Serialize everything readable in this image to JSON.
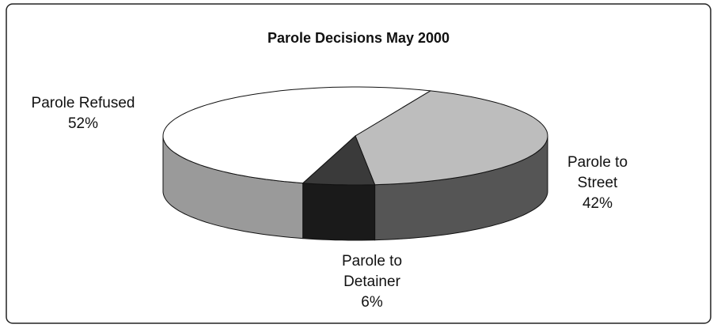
{
  "chart_data": {
    "type": "pie3d",
    "title": "Parole Decisions May 2000",
    "categories": [
      "Parole Refused",
      "Parole to Street",
      "Parole to Detainer"
    ],
    "values": [
      52,
      42,
      6
    ],
    "value_labels": [
      "52%",
      "42%",
      "6%"
    ],
    "colors": [
      "#ffffff",
      "#bdbdbd",
      "#3a3a3a"
    ],
    "side_colors": [
      "#9a9a9a",
      "#555555",
      "#1a1a1a"
    ]
  }
}
